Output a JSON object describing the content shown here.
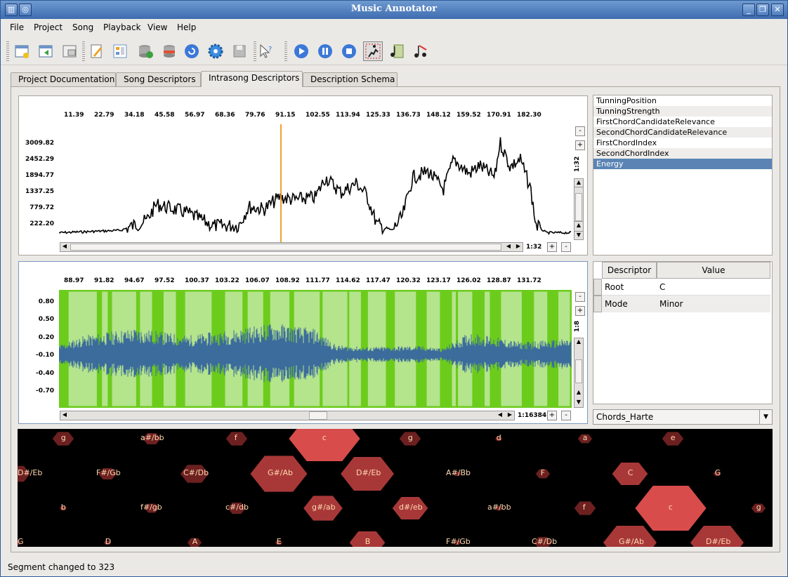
{
  "window": {
    "title": "Music Annotator"
  },
  "menu": [
    "File",
    "Project",
    "Song",
    "Playback",
    "View",
    "Help"
  ],
  "toolbar_icons": [
    "new-project-icon",
    "open-project-icon",
    "close-project-icon",
    "edit-icon",
    "list-icon",
    "add-db-icon",
    "remove-db-icon",
    "refresh-icon",
    "settings-icon",
    "save-icon",
    "help-cursor-icon",
    "play-icon",
    "pause-icon",
    "stop-icon",
    "runner-icon",
    "score-icon",
    "music-notes-icon"
  ],
  "tabs": [
    "Project Documentation",
    "Song Descriptors",
    "Intrasong Descriptors",
    "Description Schema"
  ],
  "active_tab": 2,
  "plot1": {
    "x_ticks": [
      "11.39",
      "22.79",
      "34.18",
      "45.58",
      "56.97",
      "68.36",
      "79.76",
      "91.15",
      "102.55",
      "113.94",
      "125.33",
      "136.73",
      "148.12",
      "159.52",
      "170.91",
      "182.30"
    ],
    "y_ticks": [
      "3009.82",
      "2452.29",
      "1894.77",
      "1337.25",
      "779.72",
      "222.20"
    ],
    "zoom_v": "1:32",
    "zoom_h": "1:32"
  },
  "plot2": {
    "x_ticks": [
      "88.97",
      "91.82",
      "94.67",
      "97.52",
      "100.37",
      "103.22",
      "106.07",
      "108.92",
      "111.77",
      "114.62",
      "117.47",
      "120.32",
      "123.17",
      "126.02",
      "128.87",
      "131.72"
    ],
    "y_ticks": [
      "0.80",
      "0.50",
      "0.20",
      "-0.10",
      "-0.40",
      "-0.70"
    ],
    "zoom_v": "1:8",
    "zoom_h": "1:16384"
  },
  "descriptor_list": [
    "TunningPosition",
    "TunningStrength",
    "FirstChordCandidateRelevance",
    "SecondChordCandidateRelevance",
    "FirstChordIndex",
    "SecondChordIndex",
    "Energy"
  ],
  "selected_descriptor": "Energy",
  "table": {
    "headers": [
      "Descriptor",
      "Value"
    ],
    "rows": [
      [
        "Root",
        "C"
      ],
      [
        "Mode",
        "Minor"
      ]
    ]
  },
  "combo": {
    "value": "Chords_Harte"
  },
  "tonnetz": {
    "row1": [
      "g",
      "a#/bb",
      "f",
      "c",
      "g",
      "d",
      "a",
      "e"
    ],
    "row2": [
      "D#/Eb",
      "F#/Gb",
      "C#/Db",
      "G#/Ab",
      "D#/Eb",
      "A#/Bb",
      "F",
      "C",
      "G"
    ],
    "row3": [
      "b",
      "f#/gb",
      "c#/db",
      "g#/ab",
      "d#/eb",
      "a#/bb",
      "f",
      "c",
      "g"
    ],
    "row4": [
      "G",
      "D",
      "A",
      "E",
      "B",
      "F#/Gb",
      "C#/Db",
      "G#/Ab",
      "D#/Eb"
    ]
  },
  "status": "Segment changed to 323",
  "colors": {
    "energy_line": "#000000",
    "cursor": "#f0a030",
    "wave": "#3c6c9c",
    "segment_green": "#6ccc1c",
    "segment_light": "#b4e48c",
    "hex_strong": "#d84c4c",
    "hex_mid": "#a83838",
    "hex_dark": "#6c2020",
    "list_select": "#5b84b4"
  }
}
